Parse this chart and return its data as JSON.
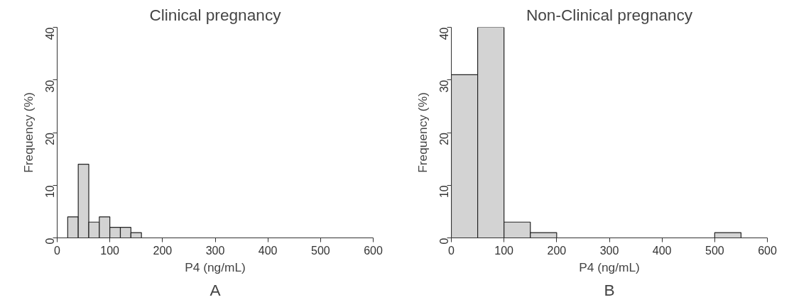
{
  "chart_data": [
    {
      "type": "histogram",
      "title": "Clinical pregnancy",
      "xlabel": "P4 (ng/mL)",
      "ylabel": "Frequency (%)",
      "annotations": [
        "A"
      ],
      "color": "#d3d3d3",
      "bins": [
        20,
        40,
        60,
        80,
        100,
        120,
        140,
        160
      ],
      "values": [
        4,
        14,
        3,
        4,
        2,
        2,
        1
      ],
      "xlim": [
        0,
        600
      ],
      "xticks": [
        0,
        100,
        200,
        300,
        400,
        500,
        600
      ],
      "ylim": [
        0,
        40
      ],
      "yticks": [
        0,
        10,
        20,
        30,
        40
      ],
      "grid": false
    },
    {
      "type": "histogram",
      "title": "Non-Clinical pregnancy",
      "xlabel": "P4 (ng/mL)",
      "ylabel": "Frequency (%)",
      "annotations": [
        "B"
      ],
      "color": "#d3d3d3",
      "bins": [
        0,
        50,
        100,
        150,
        200,
        250,
        300,
        350,
        400,
        450,
        500,
        550
      ],
      "values": [
        31,
        40,
        3,
        1,
        0,
        0,
        0,
        0,
        0,
        0,
        1
      ],
      "xlim": [
        0,
        600
      ],
      "xticks": [
        0,
        100,
        200,
        300,
        400,
        500,
        600
      ],
      "ylim": [
        0,
        40
      ],
      "yticks": [
        0,
        10,
        20,
        30,
        40
      ],
      "grid": false
    }
  ]
}
